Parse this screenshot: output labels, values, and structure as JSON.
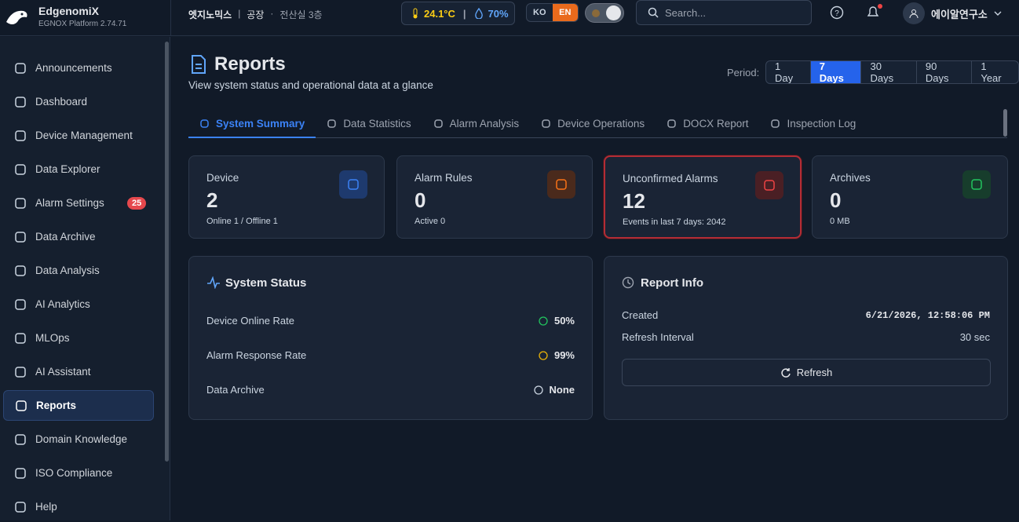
{
  "brand": {
    "name": "EdgenomiX",
    "platform": "EGNOX Platform",
    "version": "2.74.71"
  },
  "header": {
    "site": "엣지노믹스",
    "location": "공장",
    "room": "전산실 3층",
    "temperature": "24.1°C",
    "humidity": "70%",
    "languages": [
      "KO",
      "EN"
    ],
    "search_placeholder": "Search...",
    "user": "에이알연구소"
  },
  "nav": [
    {
      "label": "Announcements"
    },
    {
      "label": "Dashboard"
    },
    {
      "label": "Device Management"
    },
    {
      "label": "Data Explorer"
    },
    {
      "label": "Alarm Settings",
      "badge": "25"
    },
    {
      "label": "Data Archive"
    },
    {
      "label": "Data Analysis"
    },
    {
      "label": "AI Analytics"
    },
    {
      "label": "MLOps"
    },
    {
      "label": "AI Assistant"
    },
    {
      "label": "Reports"
    },
    {
      "label": "Domain Knowledge"
    },
    {
      "label": "ISO Compliance"
    },
    {
      "label": "Help"
    }
  ],
  "page": {
    "title": "Reports",
    "subtitle": "View system status and operational data at a glance",
    "period_label": "Period:",
    "periods": [
      "1 Day",
      "7 Days",
      "30 Days",
      "90 Days",
      "1 Year"
    ]
  },
  "tabs": [
    "System Summary",
    "Data Statistics",
    "Alarm Analysis",
    "Device Operations",
    "DOCX Report",
    "Inspection Log"
  ],
  "cards": [
    {
      "title": "Device",
      "value": "2",
      "detail": "Online 1 / Offline 1"
    },
    {
      "title": "Alarm Rules",
      "value": "0",
      "detail": "Active 0"
    },
    {
      "title": "Unconfirmed Alarms",
      "value": "12",
      "detail": "Events in last 7 days: 2042"
    },
    {
      "title": "Archives",
      "value": "0",
      "detail": "0 MB"
    }
  ],
  "system_status": {
    "title": "System Status",
    "rows": [
      {
        "label": "Device Online Rate",
        "value": "50%"
      },
      {
        "label": "Alarm Response Rate",
        "value": "99%"
      },
      {
        "label": "Data Archive",
        "value": "None"
      }
    ]
  },
  "report_info": {
    "title": "Report Info",
    "rows": [
      {
        "label": "Created",
        "value": "6/21/2026, 12:58:06 PM"
      },
      {
        "label": "Refresh Interval",
        "value": "30 sec"
      }
    ],
    "button": "Refresh"
  }
}
